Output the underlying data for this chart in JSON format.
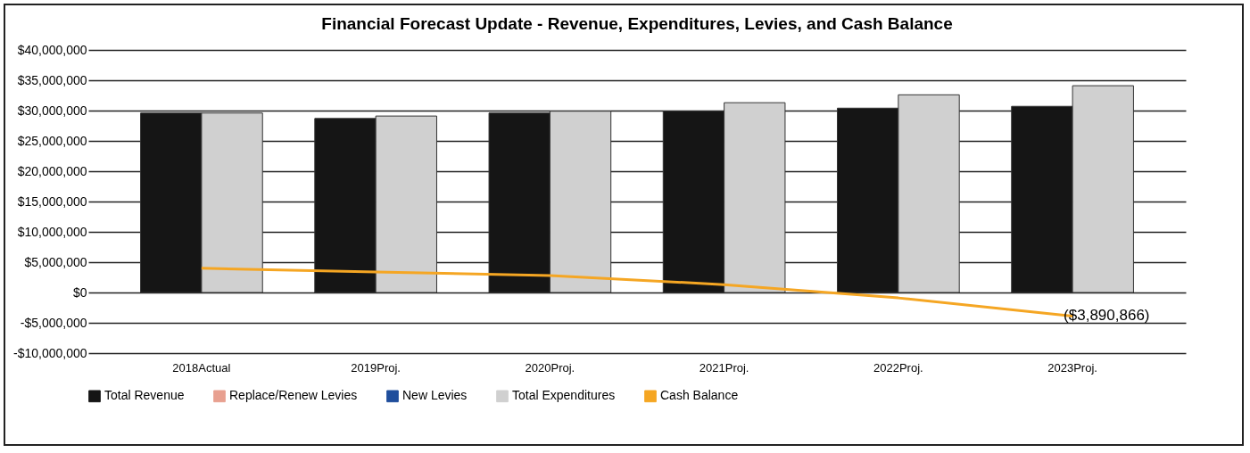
{
  "chart_data": {
    "type": "bar",
    "title": "Financial Forecast Update - Revenue, Expenditures, Levies, and Cash Balance",
    "categories": [
      "2018Actual",
      "2019Proj.",
      "2020Proj.",
      "2021Proj.",
      "2022Proj.",
      "2023Proj."
    ],
    "series": [
      {
        "name": "Total Revenue",
        "color": "#151515",
        "values": [
          29600000,
          28700000,
          29600000,
          29900000,
          30400000,
          30700000
        ]
      },
      {
        "name": "Replace/Renew Levies",
        "color": "#e8a090",
        "values": [
          null,
          null,
          null,
          null,
          null,
          null
        ]
      },
      {
        "name": "New Levies",
        "color": "#1f4e9c",
        "values": [
          null,
          null,
          null,
          null,
          null,
          null
        ]
      },
      {
        "name": "Total Expenditures",
        "color": "#d0d0d0",
        "values": [
          29600000,
          29100000,
          29900000,
          31300000,
          32600000,
          34100000
        ]
      },
      {
        "name": "Cash Balance",
        "type": "line",
        "color": "#f5a623",
        "values": [
          4000000,
          3400000,
          2800000,
          1300000,
          -900000,
          -3890866
        ],
        "value_labels": [
          null,
          null,
          null,
          null,
          null,
          "($3,890,866)"
        ]
      }
    ],
    "ylim": [
      -10000000,
      40000000
    ],
    "yticks": [
      {
        "value": -10000000,
        "label": "-$10,000,000"
      },
      {
        "value": -5000000,
        "label": "-$5,000,000"
      },
      {
        "value": 0,
        "label": "$0"
      },
      {
        "value": 5000000,
        "label": "$5,000,000"
      },
      {
        "value": 10000000,
        "label": "$10,000,000"
      },
      {
        "value": 15000000,
        "label": "$15,000,000"
      },
      {
        "value": 20000000,
        "label": "$20,000,000"
      },
      {
        "value": 25000000,
        "label": "$25,000,000"
      },
      {
        "value": 30000000,
        "label": "$30,000,000"
      },
      {
        "value": 35000000,
        "label": "$35,000,000"
      },
      {
        "value": 40000000,
        "label": "$40,000,000"
      }
    ],
    "grid": "y",
    "legend": "bottom"
  }
}
